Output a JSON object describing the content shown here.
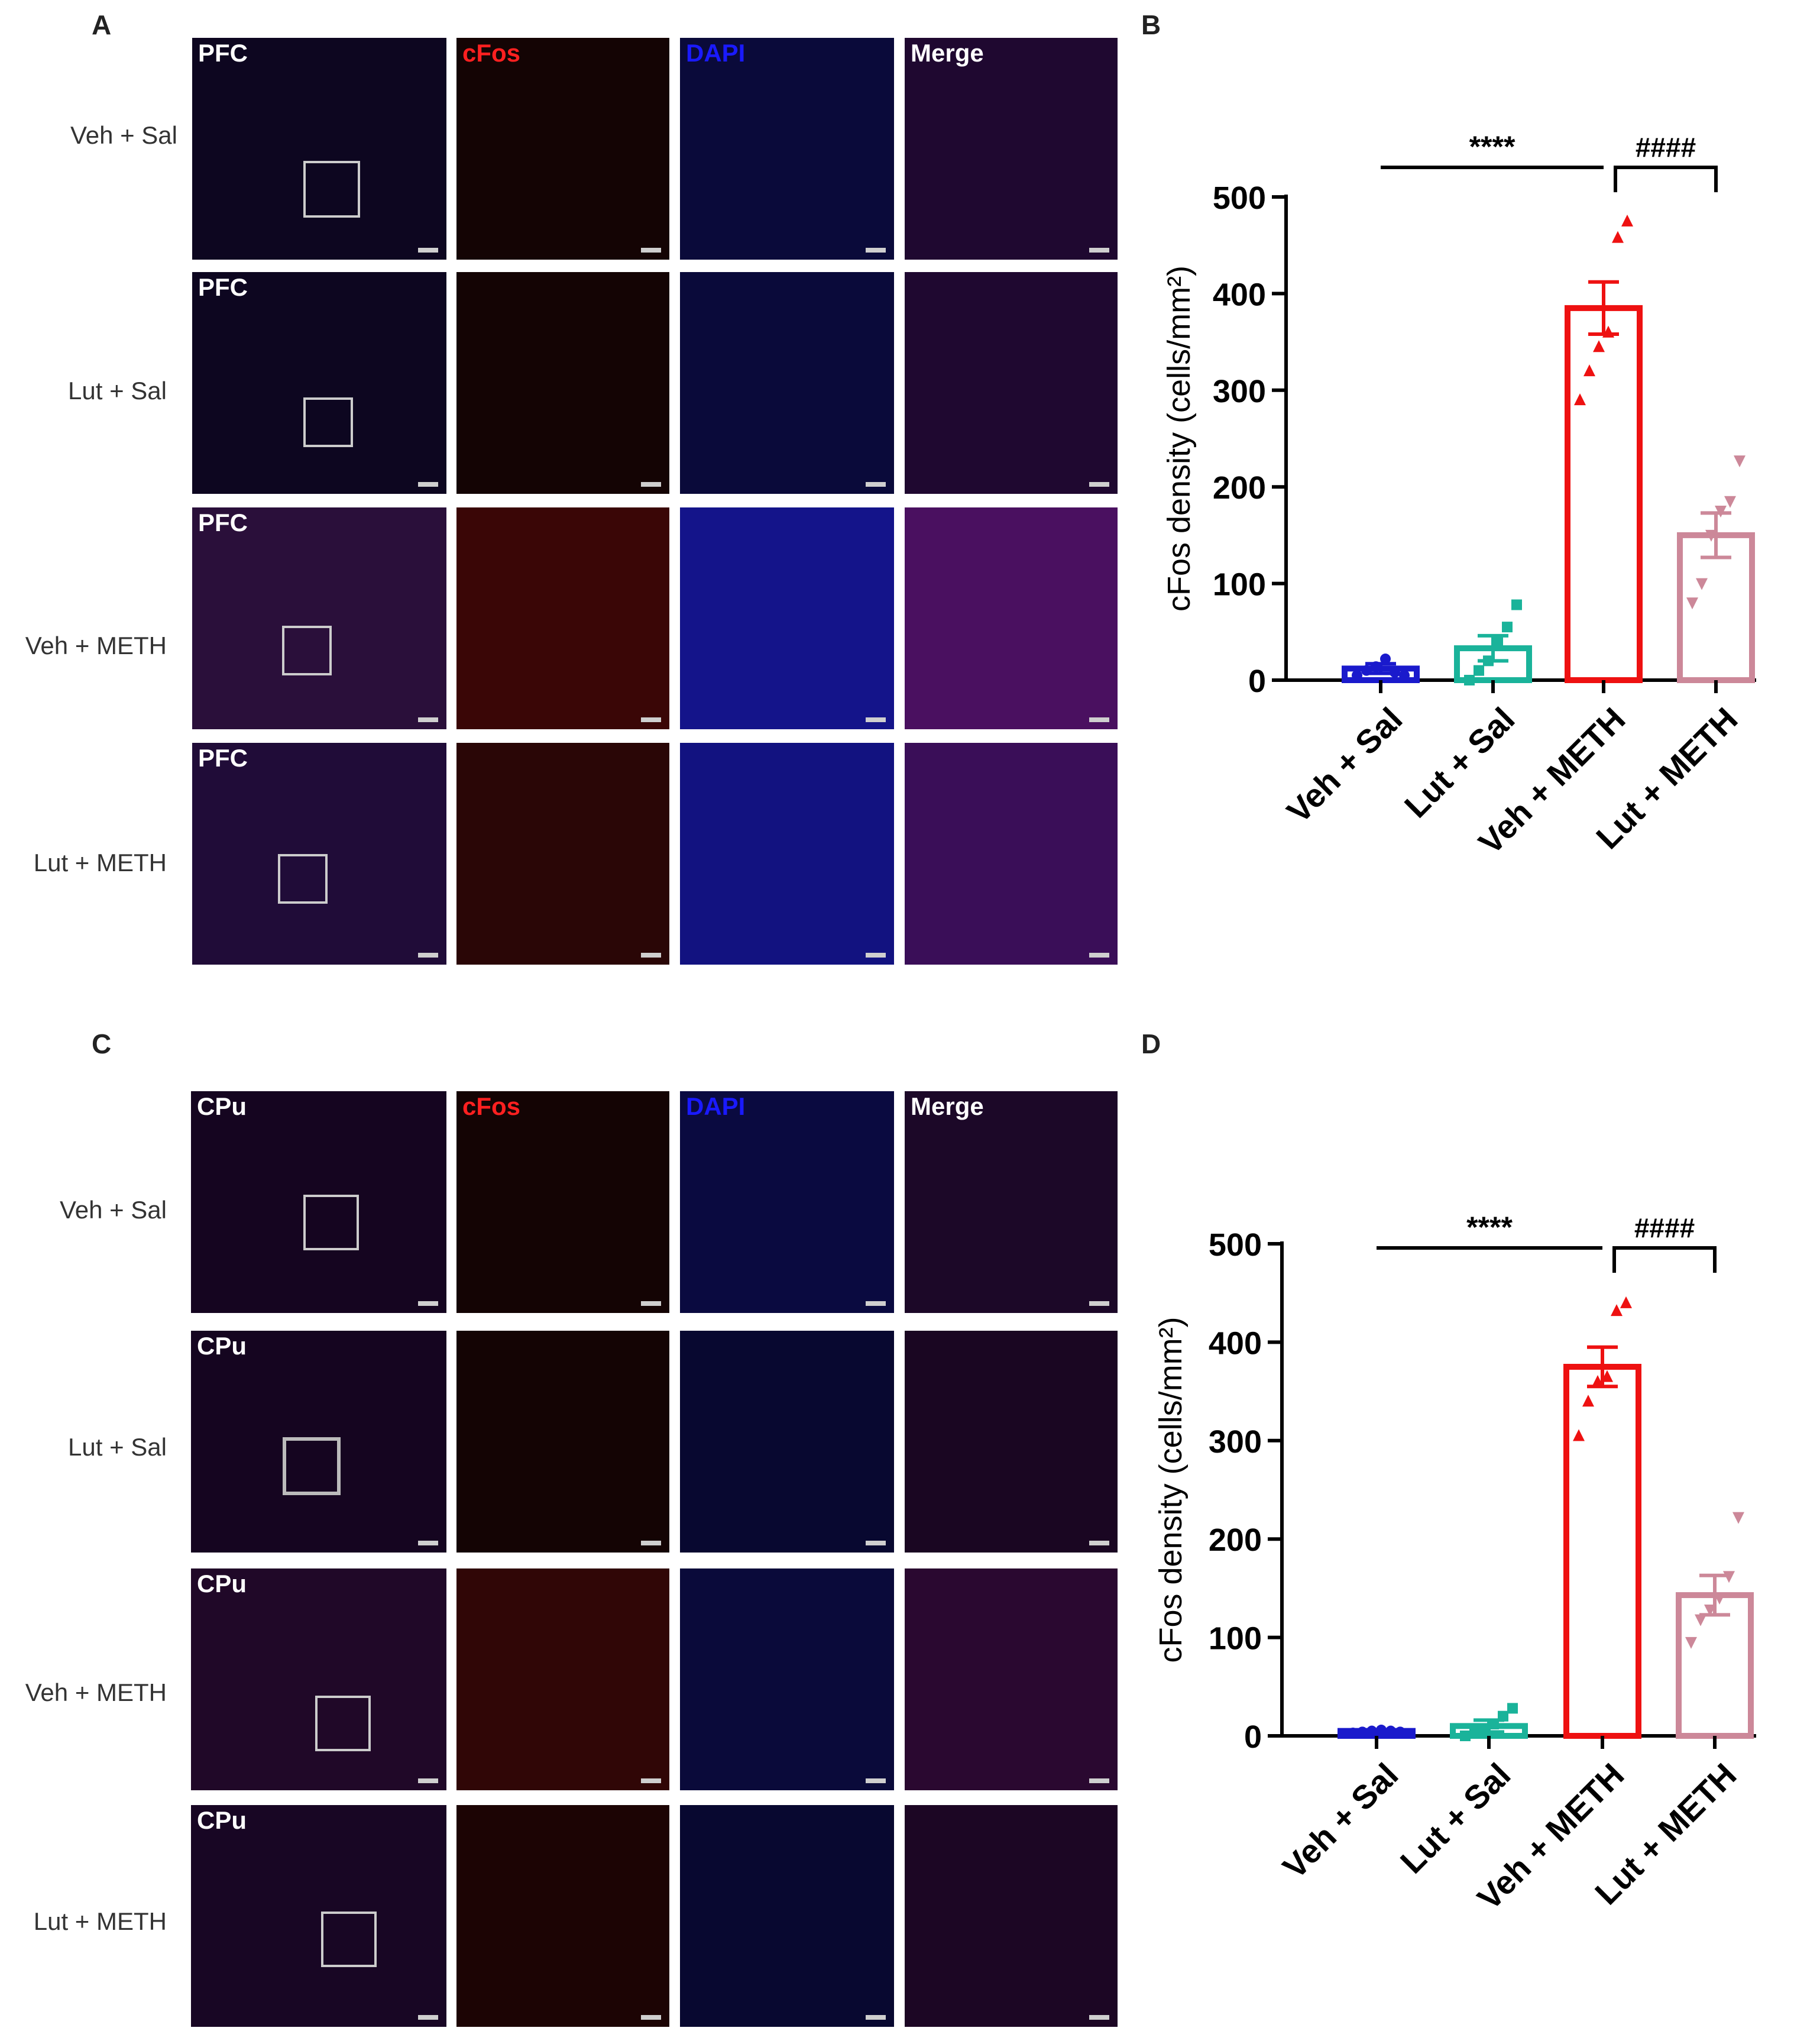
{
  "panels": {
    "a": "A",
    "b": "B",
    "c": "C",
    "d": "D"
  },
  "channels": {
    "cfos": "cFos",
    "dapi": "DAPI",
    "merge": "Merge"
  },
  "region_pfc": "PFC",
  "region_cpu": "CPu",
  "groups": [
    "Veh + Sal",
    "Lut + Sal",
    "Veh + METH",
    "Lut + METH"
  ],
  "colors": {
    "veh_sal": "#1a1acc",
    "lut_sal": "#1ab39a",
    "veh_meth": "#ee1111",
    "lut_meth": "#cc8899"
  },
  "chart_data": [
    {
      "panel": "B",
      "type": "bar",
      "categories": [
        "Veh + Sal",
        "Lut + Sal",
        "Veh + METH",
        "Lut + METH"
      ],
      "values": [
        12,
        33,
        385,
        150
      ],
      "sem": [
        5,
        13,
        27,
        23
      ],
      "points": [
        [
          5,
          10,
          14,
          22,
          8,
          5
        ],
        [
          0,
          10,
          20,
          40,
          55,
          78
        ],
        [
          290,
          320,
          345,
          360,
          458,
          475
        ],
        [
          80,
          100,
          150,
          175,
          185,
          227
        ]
      ],
      "markers": [
        "circle",
        "square",
        "triangle-up",
        "triangle-down"
      ],
      "ylabel": "cFos density (cells/mm²)",
      "ylim": [
        0,
        500
      ],
      "yticks": [
        "0",
        "100",
        "200",
        "300",
        "400",
        "500"
      ],
      "sig1": "****",
      "sig2": "####"
    },
    {
      "panel": "D",
      "type": "bar",
      "categories": [
        "Veh + Sal",
        "Lut + Sal",
        "Veh + METH",
        "Lut + METH"
      ],
      "values": [
        5,
        10,
        375,
        143
      ],
      "sem": [
        1,
        6,
        20,
        20
      ],
      "points": [
        [
          3,
          4,
          5,
          6,
          5,
          4
        ],
        [
          0,
          3,
          5,
          12,
          20,
          28
        ],
        [
          305,
          340,
          360,
          365,
          432,
          440
        ],
        [
          95,
          118,
          128,
          140,
          162,
          222
        ]
      ],
      "markers": [
        "circle",
        "square",
        "triangle-up",
        "triangle-down"
      ],
      "ylabel": "cFos density (cells/mm²)",
      "ylim": [
        0,
        500
      ],
      "yticks": [
        "0",
        "100",
        "200",
        "300",
        "400",
        "500"
      ],
      "sig1": "****",
      "sig2": "####"
    }
  ]
}
